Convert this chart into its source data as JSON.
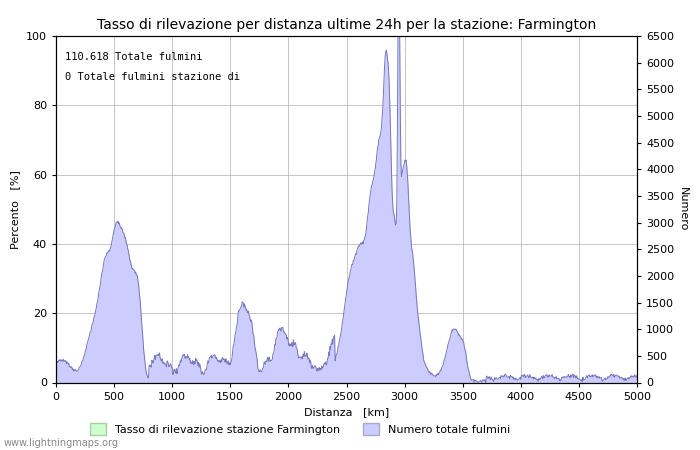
{
  "title": "Tasso di rilevazione per distanza ultime 24h per la stazione: Farmington",
  "xlabel": "Distanza   [km]",
  "ylabel_left": "Percento   [%]",
  "ylabel_right": "Numero",
  "xlim": [
    0,
    5000
  ],
  "ylim_left": [
    0,
    100
  ],
  "ylim_right": [
    0,
    6500
  ],
  "yticks_left": [
    0,
    20,
    40,
    60,
    80,
    100
  ],
  "yticks_right": [
    0,
    500,
    1000,
    1500,
    2000,
    2500,
    3000,
    3500,
    4000,
    4500,
    5000,
    5500,
    6000,
    6500
  ],
  "xticks": [
    0,
    500,
    1000,
    1500,
    2000,
    2500,
    3000,
    3500,
    4000,
    4500,
    5000
  ],
  "annotation_line1": "110.618 Totale fulmini",
  "annotation_line2": "0 Totale fulmini stazione di",
  "legend_label_green": "Tasso di rilevazione stazione Farmington",
  "legend_label_blue": "Numero totale fulmini",
  "color_blue_fill": "#ccccff",
  "color_blue_line": "#7777bb",
  "color_green_fill": "#ccffcc",
  "color_green_line": "#88cc88",
  "background_color": "#ffffff",
  "grid_color": "#bbbbbb",
  "watermark": "www.lightningmaps.org",
  "title_fontsize": 10,
  "axis_fontsize": 8,
  "tick_fontsize": 8
}
